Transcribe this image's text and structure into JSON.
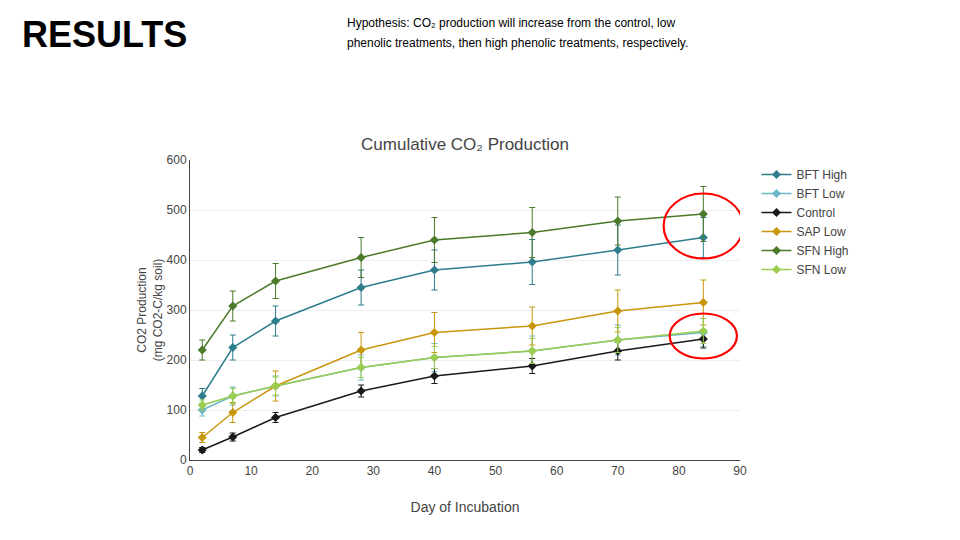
{
  "chart_data": {
    "type": "line",
    "title": "Cumulative CO₂ Production",
    "xlabel": "Day of Incubation",
    "ylabel": "CO2 Production\n(mg CO2-C/kg soil)",
    "x": [
      2,
      7,
      14,
      28,
      40,
      56,
      70,
      84
    ],
    "series": [
      {
        "name": "BFT High",
        "color": "#2E7D8C",
        "values": [
          128,
          225,
          278,
          345,
          380,
          396,
          420,
          445
        ],
        "yerr": [
          15,
          25,
          30,
          35,
          40,
          45,
          50,
          40
        ]
      },
      {
        "name": "BFT Low",
        "color": "#6DB8C8",
        "values": [
          100,
          128,
          148,
          185,
          205,
          218,
          240,
          255
        ],
        "yerr": [
          12,
          18,
          20,
          25,
          28,
          30,
          30,
          28
        ]
      },
      {
        "name": "Control",
        "color": "#1a1a1a",
        "values": [
          20,
          46,
          85,
          138,
          168,
          188,
          218,
          242
        ],
        "yerr": [
          5,
          8,
          10,
          12,
          15,
          15,
          18,
          18
        ]
      },
      {
        "name": "SAP Low",
        "color": "#C8960C",
        "values": [
          45,
          95,
          148,
          220,
          255,
          268,
          298,
          315
        ],
        "yerr": [
          10,
          20,
          30,
          35,
          40,
          38,
          42,
          45
        ]
      },
      {
        "name": "SFN High",
        "color": "#4B7A2B",
        "values": [
          220,
          308,
          358,
          405,
          440,
          455,
          478,
          492
        ],
        "yerr": [
          20,
          30,
          35,
          40,
          45,
          50,
          48,
          55
        ]
      },
      {
        "name": "SFN Low",
        "color": "#9ACD50",
        "values": [
          110,
          128,
          148,
          185,
          205,
          218,
          240,
          258
        ],
        "yerr": [
          10,
          15,
          18,
          20,
          22,
          25,
          25,
          25
        ]
      }
    ],
    "xlim": [
      0,
      90
    ],
    "ylim": [
      0,
      600
    ],
    "xticks": [
      0,
      10,
      20,
      30,
      40,
      50,
      60,
      70,
      80,
      90
    ],
    "yticks": [
      0,
      100,
      200,
      300,
      400,
      500,
      600
    ],
    "grid": "y",
    "legend": "right",
    "marker": "diamond",
    "line_style": "solid",
    "ellipses": [
      {
        "cx": 84,
        "cy": 468,
        "w": 13,
        "h": 130,
        "color": "red"
      },
      {
        "cx": 84,
        "cy": 248,
        "w": 11,
        "h": 90,
        "color": "red"
      }
    ],
    "annotations": [
      "RESULTS",
      "Hypothesis: CO₂ production will increase from the control, low",
      "phenolic treatments, then high phenolic treatments, respectively."
    ]
  }
}
